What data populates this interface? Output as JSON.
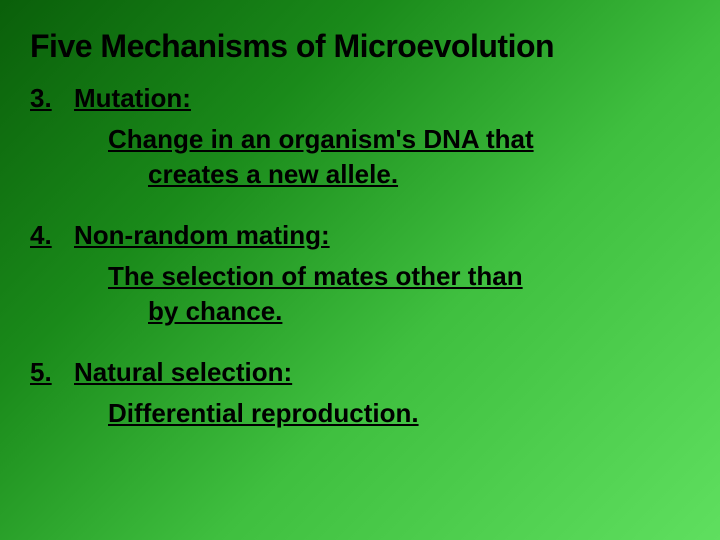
{
  "slide": {
    "title": "Five Mechanisms of Microevolution",
    "items": [
      {
        "number": "3.",
        "label": "Mutation:",
        "def_line1": "Change in an organism's DNA that",
        "def_line2": "creates a new allele."
      },
      {
        "number": "4.",
        "label": "Non-random mating:",
        "def_line1": "The selection of mates other than",
        "def_line2": "by chance."
      },
      {
        "number": "5.",
        "label": "Natural selection:",
        "def_line1": "Differential reproduction.",
        "def_line2": ""
      }
    ],
    "background": {
      "gradient_start": "#0a5f0a",
      "gradient_mid1": "#1a8a1a",
      "gradient_mid2": "#3fbf3f",
      "gradient_end": "#5fdf5f"
    },
    "title_fontsize": 32,
    "body_fontsize": 26,
    "text_color": "#000000"
  }
}
